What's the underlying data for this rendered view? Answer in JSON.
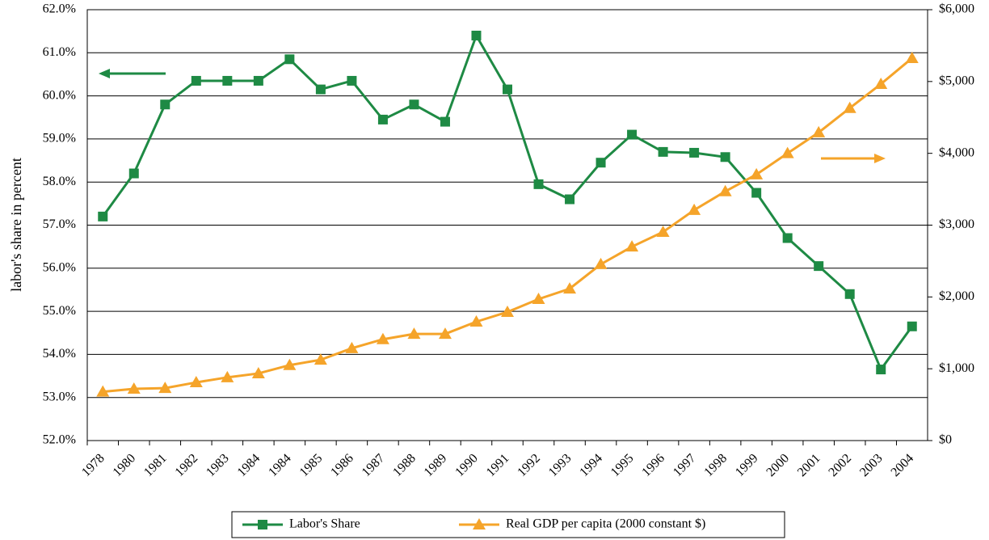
{
  "chart_data": {
    "type": "line",
    "y_label": "labor's share in percent",
    "categories": [
      "1978",
      "1980",
      "1981",
      "1982",
      "1983",
      "1984",
      "1984",
      "1985",
      "1986",
      "1987",
      "1988",
      "1989",
      "1990",
      "1991",
      "1992",
      "1993",
      "1994",
      "1995",
      "1996",
      "1997",
      "1998",
      "1999",
      "2000",
      "2001",
      "2002",
      "2003",
      "2004"
    ],
    "series": [
      {
        "name": "Labor's Share",
        "color": "#1e8a44",
        "marker": "square",
        "values": [
          57.2,
          58.2,
          59.8,
          60.35,
          60.35,
          60.35,
          60.85,
          60.15,
          60.35,
          59.45,
          59.8,
          59.4,
          61.4,
          60.15,
          57.95,
          57.6,
          58.45,
          59.1,
          58.7,
          58.68,
          58.58,
          57.75,
          56.7,
          56.05,
          55.4,
          53.65,
          54.65
        ]
      },
      {
        "name": "Real GDP per capita (2000 constant $)",
        "color": "#f5a42a",
        "marker": "triangle",
        "axis": "y2",
        "values": [
          680,
          720,
          730,
          810,
          880,
          935,
          1050,
          1125,
          1285,
          1410,
          1485,
          1485,
          1655,
          1790,
          1970,
          2115,
          2455,
          2700,
          2905,
          3210,
          3470,
          3705,
          4000,
          4290,
          4630,
          4965,
          5325
        ]
      }
    ],
    "ylim": [
      52,
      62
    ],
    "yticks": [
      {
        "value": 52,
        "label": "52.0%"
      },
      {
        "value": 53,
        "label": "53.0%"
      },
      {
        "value": 54,
        "label": "54.0%"
      },
      {
        "value": 55,
        "label": "55.0%"
      },
      {
        "value": 56,
        "label": "56.0%"
      },
      {
        "value": 57,
        "label": "57.0%"
      },
      {
        "value": 58,
        "label": "58.0%"
      },
      {
        "value": 59,
        "label": "59.0%"
      },
      {
        "value": 60,
        "label": "60.0%"
      },
      {
        "value": 61,
        "label": "61.0%"
      },
      {
        "value": 62,
        "label": "62.0%"
      }
    ],
    "y2lim": [
      0,
      6000
    ],
    "y2ticks": [
      {
        "value": 0,
        "label": "$0"
      },
      {
        "value": 1000,
        "label": "$1,000"
      },
      {
        "value": 2000,
        "label": "$2,000"
      },
      {
        "value": 3000,
        "label": "$3,000"
      },
      {
        "value": 4000,
        "label": "$4,000"
      },
      {
        "value": 5000,
        "label": "$5,000"
      },
      {
        "value": 6000,
        "label": "$6,000"
      }
    ],
    "grid": true,
    "legend": "bottom"
  }
}
